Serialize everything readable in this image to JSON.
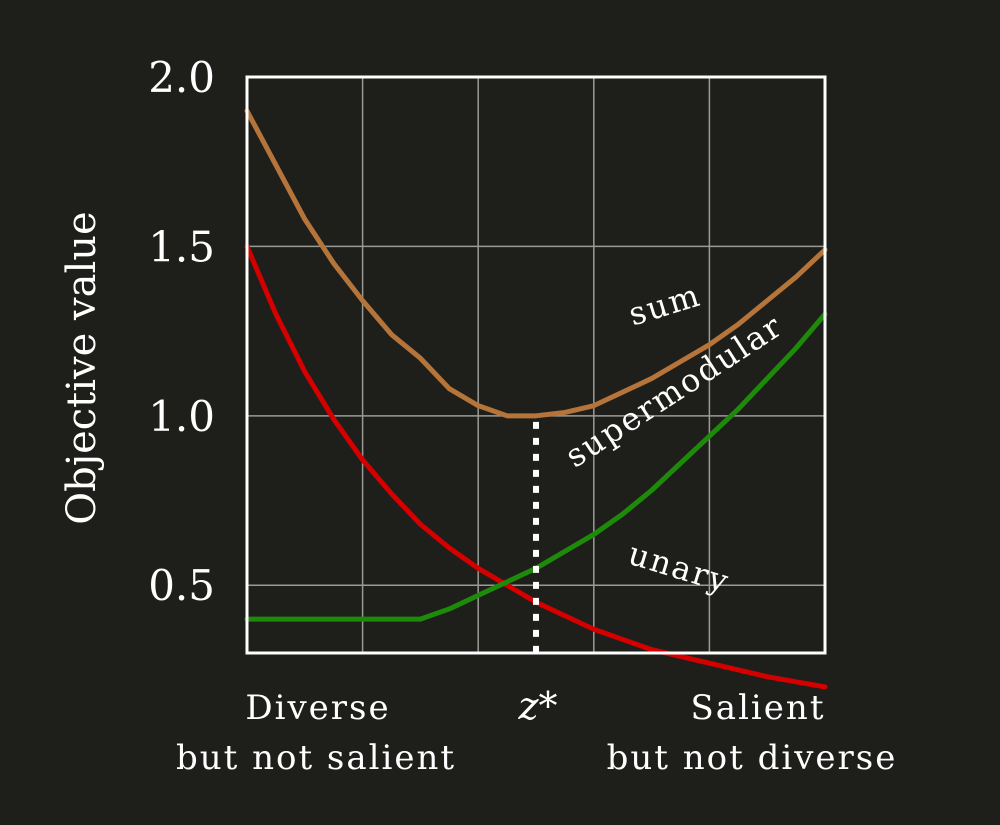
{
  "chart_data": {
    "type": "line",
    "title": "",
    "xlabel": "",
    "ylabel": "Objective value",
    "xlim": [
      0,
      1
    ],
    "ylim": [
      0.3,
      2.0
    ],
    "yticks": [
      "0.5",
      "1.0",
      "1.5",
      "2.0"
    ],
    "ytick_values": [
      0.5,
      1.0,
      1.5,
      2.0
    ],
    "grid": true,
    "x_category_labels": [
      {
        "line1": "Diverse",
        "line2": "but not salient"
      },
      {
        "line1": "Salient",
        "line2": "but not diverse"
      }
    ],
    "marker": {
      "label": "z*",
      "x": 0.5,
      "y": 1.0
    },
    "series": [
      {
        "name": "sum",
        "color": "#b5743a",
        "x": [
          0,
          0.05,
          0.1,
          0.15,
          0.2,
          0.25,
          0.3,
          0.35,
          0.4,
          0.45,
          0.5,
          0.55,
          0.6,
          0.65,
          0.7,
          0.75,
          0.8,
          0.85,
          0.9,
          0.95,
          1.0
        ],
        "y": [
          1.9,
          1.74,
          1.58,
          1.45,
          1.34,
          1.24,
          1.17,
          1.08,
          1.03,
          1.0,
          1.0,
          1.01,
          1.03,
          1.07,
          1.11,
          1.16,
          1.21,
          1.27,
          1.34,
          1.41,
          1.49
        ]
      },
      {
        "name": "unary",
        "color": "#d40000",
        "x": [
          0,
          0.05,
          0.1,
          0.15,
          0.2,
          0.25,
          0.3,
          0.35,
          0.4,
          0.45,
          0.5,
          0.55,
          0.6,
          0.65,
          0.7,
          0.75,
          0.8,
          0.85,
          0.9,
          0.95,
          1.0
        ],
        "y": [
          1.5,
          1.3,
          1.13,
          0.99,
          0.87,
          0.77,
          0.68,
          0.61,
          0.55,
          0.5,
          0.45,
          0.41,
          0.37,
          0.34,
          0.31,
          0.29,
          0.27,
          0.25,
          0.23,
          0.215,
          0.2
        ]
      },
      {
        "name": "supermodular",
        "color": "#1e8a0a",
        "x": [
          0,
          0.1,
          0.2,
          0.3,
          0.35,
          0.4,
          0.45,
          0.5,
          0.55,
          0.6,
          0.65,
          0.7,
          0.75,
          0.8,
          0.85,
          0.9,
          0.95,
          1.0
        ],
        "y": [
          0.4,
          0.4,
          0.4,
          0.4,
          0.43,
          0.47,
          0.51,
          0.55,
          0.6,
          0.65,
          0.71,
          0.78,
          0.86,
          0.94,
          1.02,
          1.11,
          1.2,
          1.3
        ]
      }
    ]
  }
}
